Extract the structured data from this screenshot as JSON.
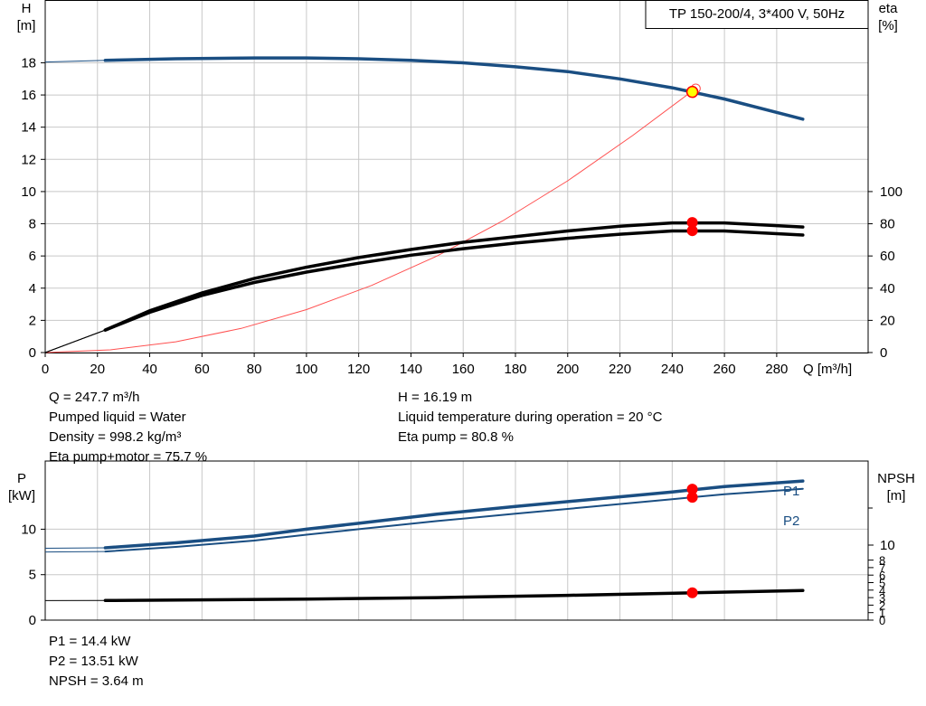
{
  "chart_data": [
    {
      "type": "line",
      "title": "TP 150-200/4, 3*400 V, 50Hz",
      "ylabel_left": [
        "H",
        "[m]"
      ],
      "ylabel_right": [
        "eta",
        "[%]"
      ],
      "xlabel": "Q [m³/h]",
      "xlim": [
        0,
        315
      ],
      "ylim": [
        0,
        21.9
      ],
      "y_right_scale": [
        0,
        100
      ],
      "x_ticks": [
        0,
        20,
        40,
        60,
        80,
        100,
        120,
        140,
        160,
        180,
        200,
        220,
        240,
        260,
        280
      ],
      "y_ticks": [
        0,
        2,
        4,
        6,
        8,
        10,
        12,
        14,
        16,
        18
      ],
      "y_right_ticks": [
        0,
        20,
        40,
        60,
        80,
        100
      ],
      "grid": true,
      "series": [
        {
          "role": "head",
          "color": "#1a4e82",
          "x": [
            0,
            23,
            50,
            80,
            100,
            120,
            140,
            160,
            180,
            200,
            220,
            240,
            260,
            290
          ],
          "y": [
            18.05,
            18.15,
            18.25,
            18.3,
            18.3,
            18.25,
            18.15,
            18.0,
            17.75,
            17.45,
            17.0,
            16.45,
            15.75,
            14.5
          ]
        },
        {
          "role": "system-curve",
          "color": "#ff5050",
          "x": [
            0,
            25,
            50,
            75,
            100,
            125,
            150,
            175,
            200,
            225,
            249
          ],
          "y": [
            0,
            0.17,
            0.67,
            1.5,
            2.67,
            4.17,
            6.0,
            8.17,
            10.67,
            13.5,
            16.4
          ]
        },
        {
          "role": "eta-pump",
          "color": "#000000",
          "x": [
            0,
            23,
            40,
            60,
            80,
            100,
            120,
            140,
            160,
            180,
            200,
            220,
            240,
            260,
            290
          ],
          "y": [
            0,
            14,
            26,
            37,
            46,
            53,
            59,
            64,
            68.5,
            72,
            75.5,
            78.5,
            80.5,
            80.5,
            78
          ]
        },
        {
          "role": "eta-pump-motor",
          "color": "#000000",
          "x": [
            0,
            23,
            40,
            60,
            80,
            100,
            120,
            140,
            160,
            180,
            200,
            220,
            240,
            260,
            290
          ],
          "y": [
            0,
            14,
            25,
            35.5,
            43.5,
            50,
            55.5,
            60.5,
            64.5,
            68,
            71,
            73.5,
            75.5,
            75.5,
            73
          ]
        }
      ],
      "operating_point": {
        "q": 247.7,
        "h": 16.19,
        "eta_pump": 80.8,
        "eta_total": 75.7
      }
    },
    {
      "type": "line",
      "ylabel_left": [
        "P",
        "[kW]"
      ],
      "ylabel_right": [
        "NPSH",
        "[m]"
      ],
      "xlim": [
        0,
        315
      ],
      "ylim": [
        0,
        17.5
      ],
      "y_ticks": [
        0,
        5,
        10
      ],
      "y_right_ticks": [
        0,
        1,
        2,
        3,
        4,
        5,
        6,
        7,
        8,
        10
      ],
      "y_right_major_labels": [
        0,
        10
      ],
      "grid": true,
      "series": [
        {
          "name": "P1",
          "color": "#1a4e82",
          "x": [
            0,
            23,
            50,
            80,
            100,
            120,
            150,
            180,
            210,
            240,
            260,
            290
          ],
          "y": [
            7.9,
            7.95,
            8.5,
            9.25,
            10.0,
            10.65,
            11.65,
            12.5,
            13.3,
            14.1,
            14.7,
            15.3
          ]
        },
        {
          "name": "P2",
          "color": "#1a4e82",
          "x": [
            0,
            23,
            50,
            80,
            100,
            120,
            150,
            180,
            210,
            240,
            260,
            290
          ],
          "y": [
            7.5,
            7.55,
            8.05,
            8.75,
            9.4,
            10.0,
            10.9,
            11.7,
            12.5,
            13.3,
            13.85,
            14.45
          ]
        },
        {
          "role": "npsh",
          "color": "#000000",
          "x": [
            0,
            23,
            100,
            150,
            200,
            248,
            290
          ],
          "y": [
            2.6,
            2.62,
            2.8,
            3.0,
            3.3,
            3.64,
            3.95
          ]
        }
      ],
      "operating_point": {
        "q": 247.7,
        "p1": 14.4,
        "p2": 13.51,
        "npsh": 3.64
      }
    }
  ],
  "info_left": [
    "Q = 247.7 m³/h",
    "Pumped liquid = Water",
    "Density = 998.2 kg/m³",
    "Eta pump+motor = 75.7 %"
  ],
  "info_right": [
    "H = 16.19 m",
    "Liquid temperature during operation = 20 °C",
    "Eta pump = 80.8 %"
  ],
  "info_bottom": [
    "P1 = 14.4 kW",
    "P2 = 13.51 kW",
    "NPSH = 3.64 m"
  ],
  "colors": {
    "blue": "#1a4e82",
    "red": "#ff0000",
    "system": "#ff5050",
    "grid": "#c8c8c8",
    "yellow": "#ffff00"
  }
}
